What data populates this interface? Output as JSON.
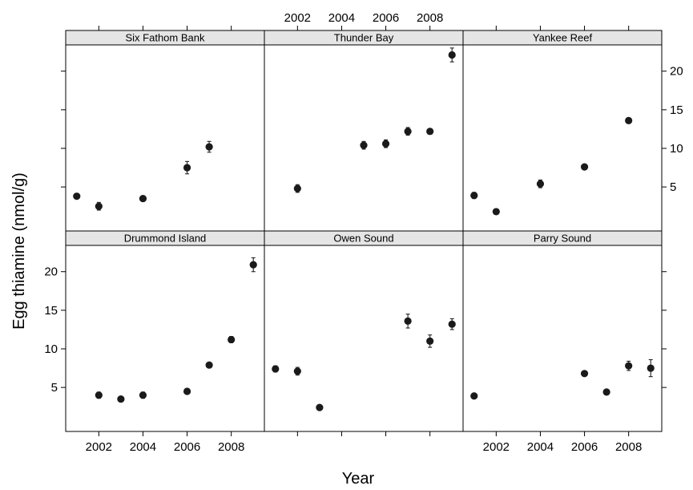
{
  "chart_data": {
    "type": "scatter",
    "xlabel": "Year",
    "ylabel": "Egg thiamine (nmol/g)",
    "xlim": [
      2000.5,
      2009.5
    ],
    "ylim": [
      -0.7,
      23.4
    ],
    "x_ticks": [
      2002,
      2004,
      2006,
      2008
    ],
    "x_tick_labels": [
      "2002",
      "2004",
      "2006",
      "2008"
    ],
    "y_ticks": [
      5,
      10,
      15,
      20
    ],
    "y_tick_labels": [
      "5",
      "10",
      "15",
      "20"
    ],
    "grid": false,
    "legend": "none",
    "marker_color": "#1a1a1a",
    "panels": [
      {
        "title": "Six Fathom Bank",
        "points": [
          {
            "x": 2001,
            "y": 3.8,
            "err": 0.3
          },
          {
            "x": 2002,
            "y": 2.5,
            "err": 0.5
          },
          {
            "x": 2004,
            "y": 3.5,
            "err": 0.3
          },
          {
            "x": 2006,
            "y": 7.5,
            "err": 0.8
          },
          {
            "x": 2007,
            "y": 10.2,
            "err": 0.7
          }
        ]
      },
      {
        "title": "Thunder Bay",
        "points": [
          {
            "x": 2002,
            "y": 4.8,
            "err": 0.5
          },
          {
            "x": 2005,
            "y": 10.4,
            "err": 0.5
          },
          {
            "x": 2006,
            "y": 10.6,
            "err": 0.5
          },
          {
            "x": 2007,
            "y": 12.2,
            "err": 0.5
          },
          {
            "x": 2008,
            "y": 12.2,
            "err": 0.3
          },
          {
            "x": 2009,
            "y": 22.1,
            "err": 0.9
          }
        ]
      },
      {
        "title": "Yankee Reef",
        "points": [
          {
            "x": 2001,
            "y": 3.9,
            "err": 0.4
          },
          {
            "x": 2002,
            "y": 1.8,
            "err": 0.2
          },
          {
            "x": 2004,
            "y": 5.4,
            "err": 0.5
          },
          {
            "x": 2006,
            "y": 7.6,
            "err": 0.3
          },
          {
            "x": 2008,
            "y": 13.6,
            "err": 0.3
          }
        ]
      },
      {
        "title": "Drummond Island",
        "points": [
          {
            "x": 2002,
            "y": 4.0,
            "err": 0.4
          },
          {
            "x": 2003,
            "y": 3.5,
            "err": 0.3
          },
          {
            "x": 2004,
            "y": 4.0,
            "err": 0.4
          },
          {
            "x": 2006,
            "y": 4.5,
            "err": 0.3
          },
          {
            "x": 2007,
            "y": 7.9,
            "err": 0.3
          },
          {
            "x": 2008,
            "y": 11.2,
            "err": 0.4
          },
          {
            "x": 2009,
            "y": 20.9,
            "err": 0.9
          }
        ]
      },
      {
        "title": "Owen Sound",
        "points": [
          {
            "x": 2001,
            "y": 7.4,
            "err": 0.4
          },
          {
            "x": 2002,
            "y": 7.1,
            "err": 0.5
          },
          {
            "x": 2003,
            "y": 2.4,
            "err": 0.3
          },
          {
            "x": 2007,
            "y": 13.6,
            "err": 0.9
          },
          {
            "x": 2008,
            "y": 11.0,
            "err": 0.8
          },
          {
            "x": 2009,
            "y": 13.2,
            "err": 0.7
          }
        ]
      },
      {
        "title": "Parry  Sound",
        "points": [
          {
            "x": 2001,
            "y": 3.9,
            "err": 0.2
          },
          {
            "x": 2006,
            "y": 6.8,
            "err": 0.3
          },
          {
            "x": 2007,
            "y": 4.4,
            "err": 0.3
          },
          {
            "x": 2008,
            "y": 7.8,
            "err": 0.6
          },
          {
            "x": 2009,
            "y": 7.5,
            "err": 1.1
          }
        ]
      }
    ]
  }
}
